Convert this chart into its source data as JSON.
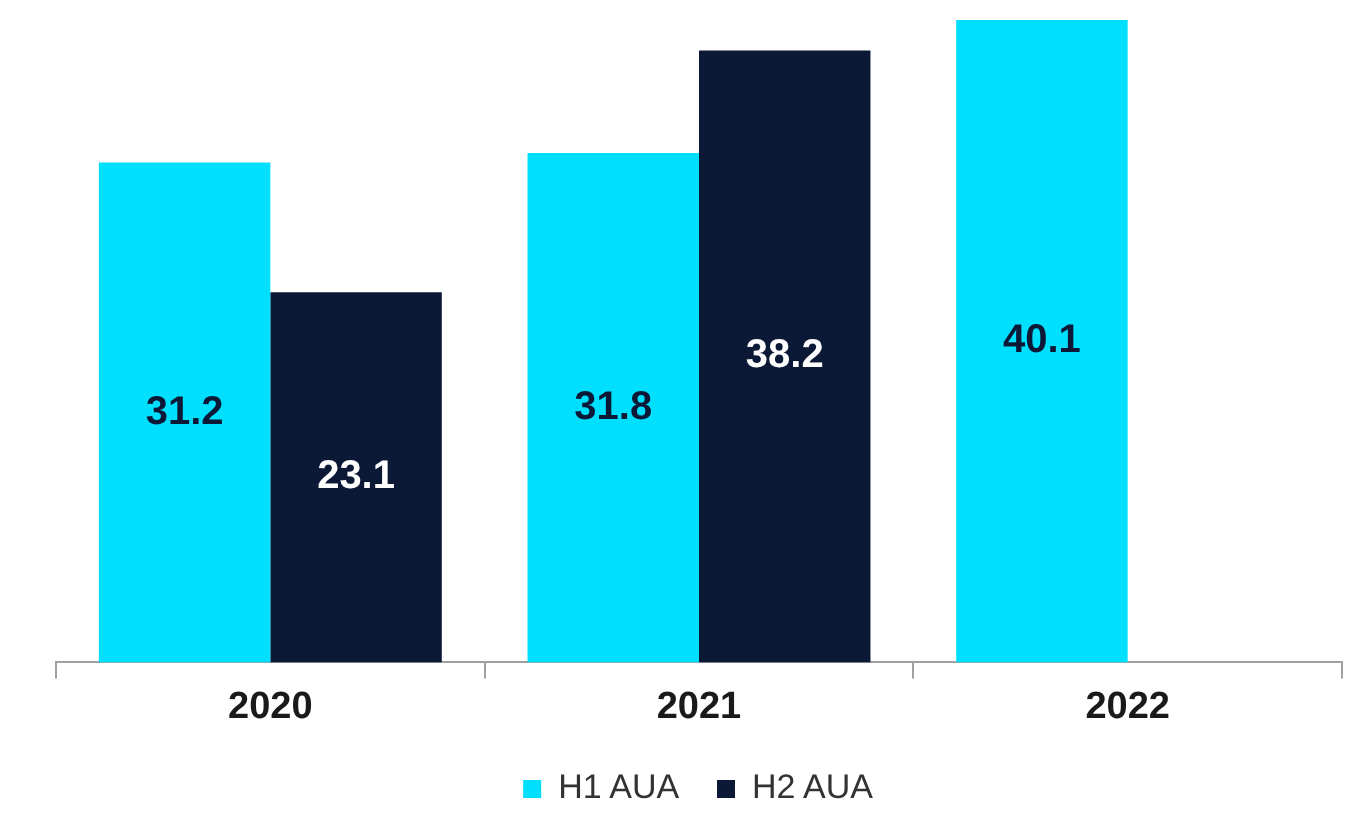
{
  "chart_data": {
    "type": "bar",
    "categories": [
      "2020",
      "2021",
      "2022"
    ],
    "series": [
      {
        "name": "H1 AUA",
        "color": "#00e0fe",
        "values": [
          31.2,
          31.8,
          40.1
        ]
      },
      {
        "name": "H2 AUA",
        "color": "#0b1936",
        "values": [
          23.1,
          38.2,
          null
        ]
      }
    ],
    "data_labels": true,
    "legend": "bottom"
  }
}
